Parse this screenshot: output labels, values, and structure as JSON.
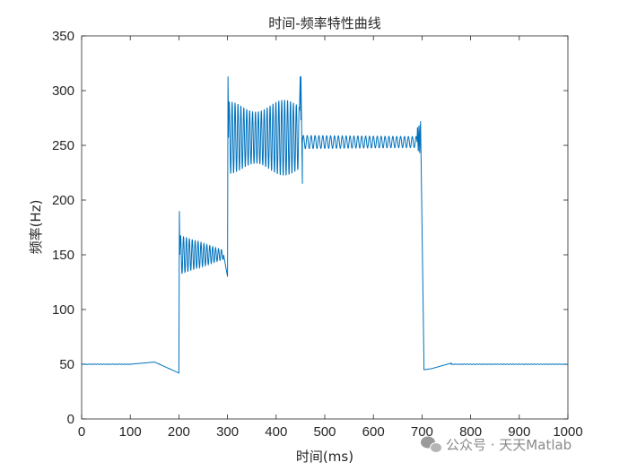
{
  "chart_data": {
    "type": "line",
    "title": "时间-频率特性曲线",
    "xlabel": "时间(ms)",
    "ylabel": "频率(Hz)",
    "xlim": [
      0,
      1000
    ],
    "ylim": [
      0,
      350
    ],
    "xticks": [
      0,
      100,
      200,
      300,
      400,
      500,
      600,
      700,
      800,
      900,
      1000
    ],
    "yticks": [
      0,
      50,
      100,
      150,
      200,
      250,
      300,
      350
    ],
    "grid": false,
    "legend": "none",
    "series": [
      {
        "color": "#0072BD",
        "segments": [
          {
            "x0": 0,
            "x1": 100,
            "kind": "flat",
            "level": 50
          },
          {
            "x0": 100,
            "x1": 150,
            "kind": "ramp",
            "from": 50,
            "to": 52
          },
          {
            "x0": 150,
            "x1": 200,
            "kind": "ramp",
            "from": 52,
            "to": 42
          },
          {
            "x0": 200,
            "x1": 202,
            "kind": "spike",
            "to": 190
          },
          {
            "x0": 202,
            "x1": 292,
            "kind": "osc",
            "center": 150,
            "amp_start": 18,
            "amp_end": 4,
            "period": 6
          },
          {
            "x0": 292,
            "x1": 300,
            "kind": "ramp",
            "from": 150,
            "to": 130
          },
          {
            "x0": 300,
            "x1": 302,
            "kind": "spike",
            "to": 313
          },
          {
            "x0": 302,
            "x1": 448,
            "kind": "osc",
            "center": 257,
            "amp_start": 33,
            "amp_end": 35,
            "period": 6
          },
          {
            "x0": 448,
            "x1": 451,
            "kind": "spike",
            "to": 313
          },
          {
            "x0": 451,
            "x1": 454,
            "kind": "ramp",
            "from": 313,
            "to": 215
          },
          {
            "x0": 454,
            "x1": 690,
            "kind": "osc",
            "center": 253,
            "amp_start": 6,
            "amp_end": 5,
            "period": 8
          },
          {
            "x0": 690,
            "x1": 697,
            "kind": "osc",
            "center": 256,
            "amp_start": 10,
            "amp_end": 14,
            "period": 3
          },
          {
            "x0": 697,
            "x1": 704,
            "kind": "ramp",
            "from": 272,
            "to": 50
          },
          {
            "x0": 704,
            "x1": 720,
            "kind": "ramp",
            "from": 45,
            "to": 46
          },
          {
            "x0": 720,
            "x1": 760,
            "kind": "ramp",
            "from": 46,
            "to": 51
          },
          {
            "x0": 760,
            "x1": 1000,
            "kind": "flat",
            "level": 50
          }
        ]
      }
    ]
  },
  "watermark": {
    "text": "公众号 · 天天Matlab",
    "icon": "wechat-icon"
  }
}
